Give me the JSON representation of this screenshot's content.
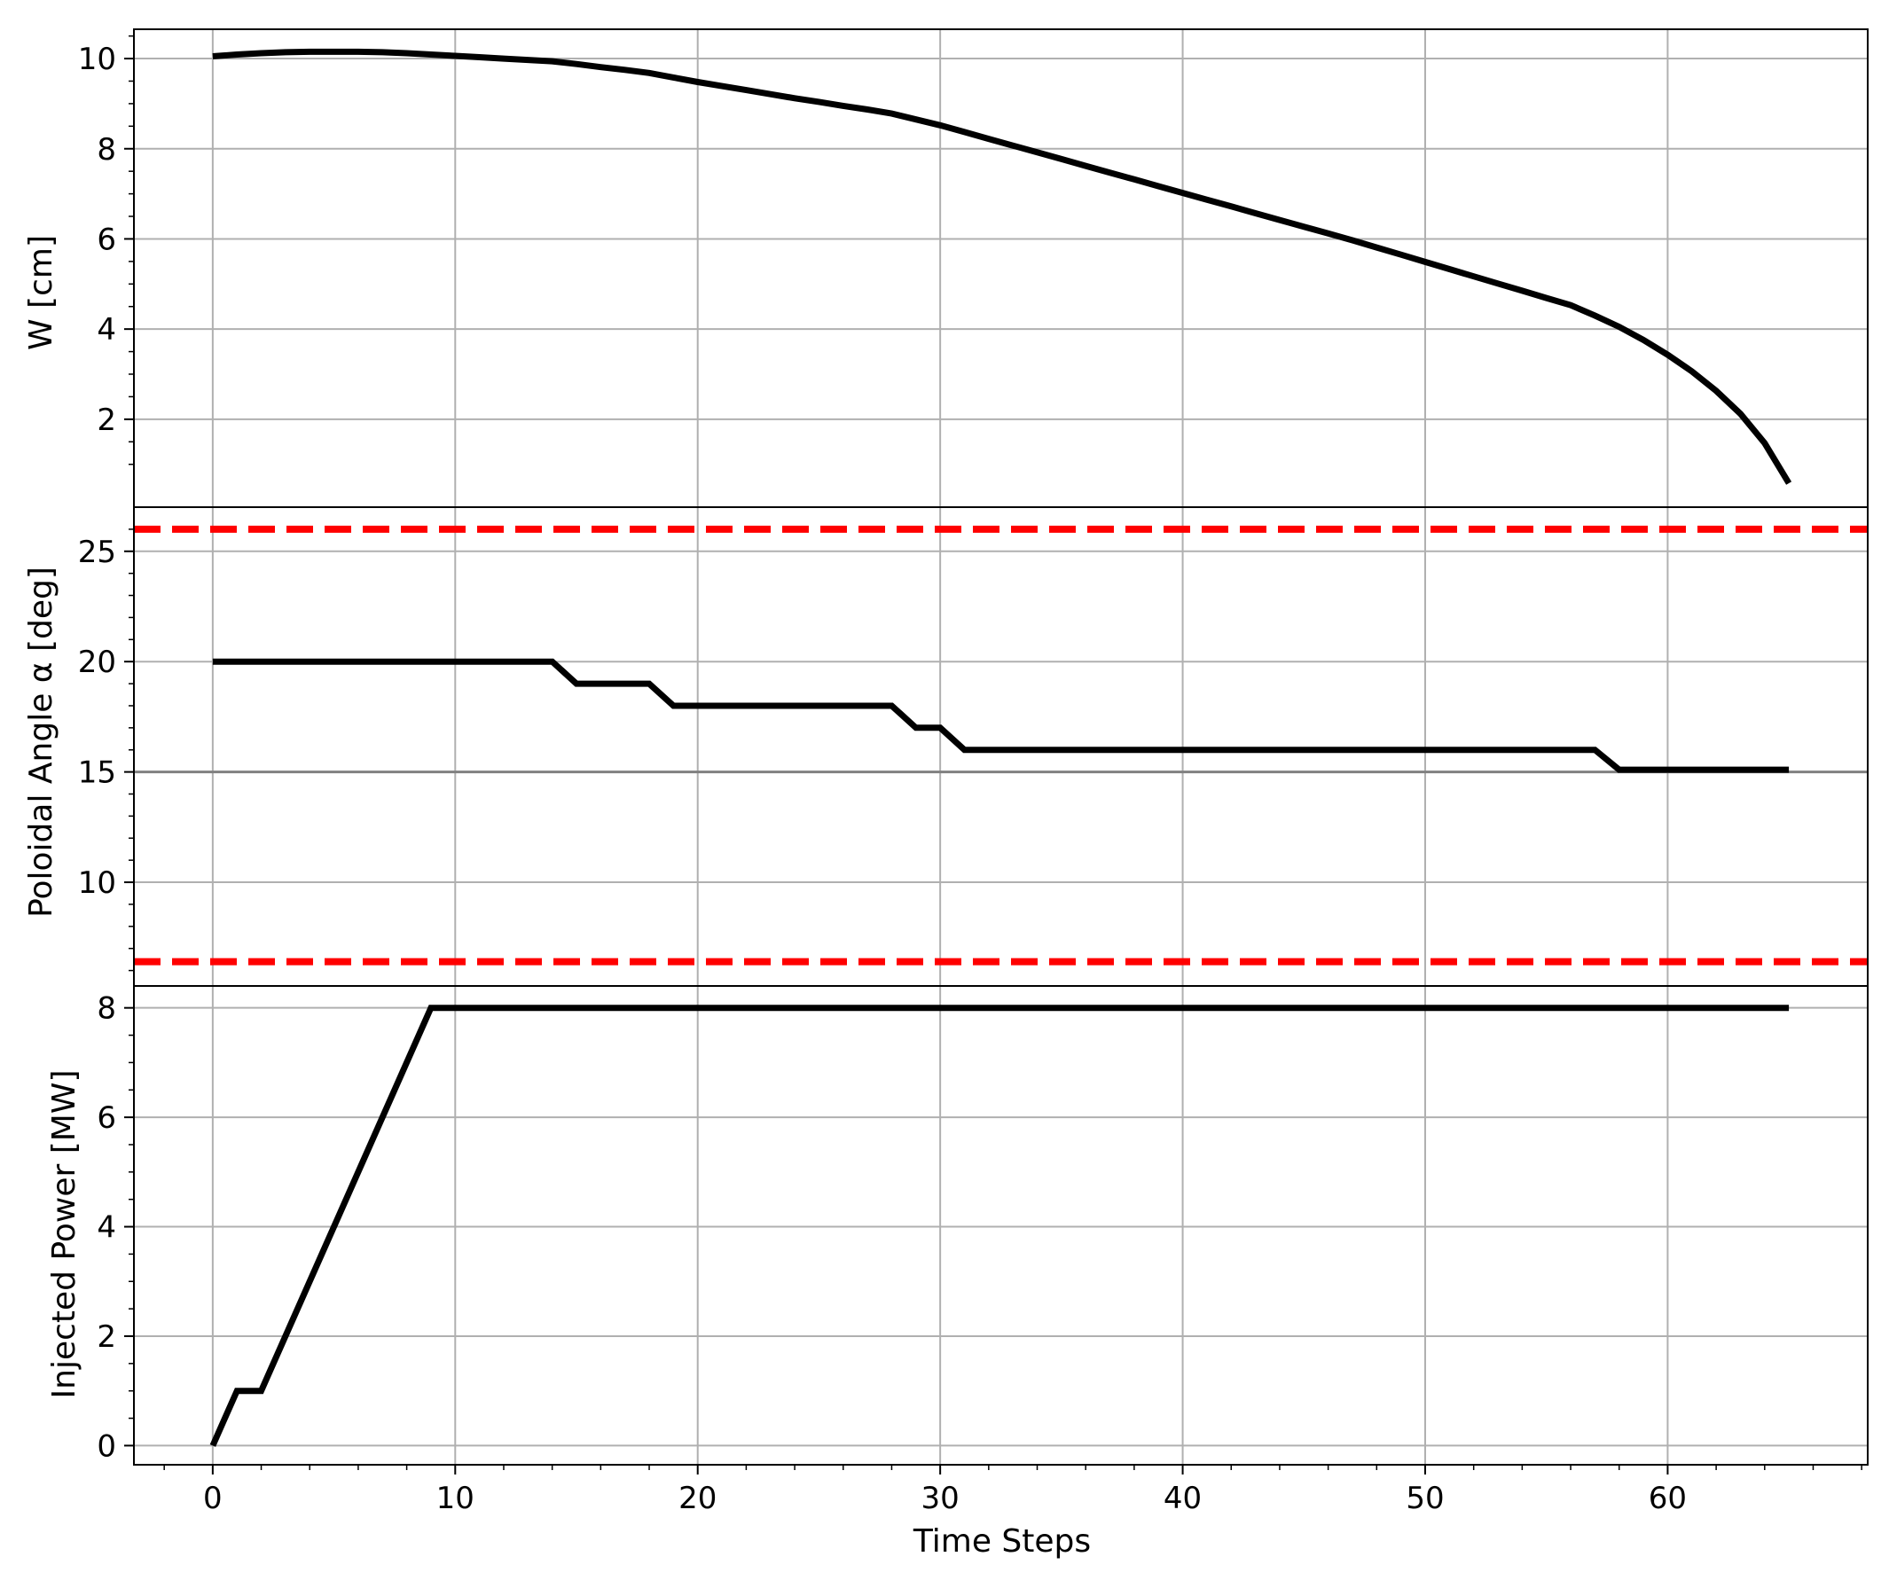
{
  "chart_data": [
    {
      "type": "line",
      "panel": "top",
      "ylabel": "W [cm]",
      "xlabel": "",
      "xlim": [
        -3.25,
        68.25
      ],
      "ylim": [
        0.05,
        10.65
      ],
      "yticks": [
        2,
        4,
        6,
        8,
        10
      ],
      "yminor": [
        1,
        1.5,
        2.5,
        3,
        3.5,
        4.5,
        5,
        5.5,
        6.5,
        7,
        7.5,
        8.5,
        9,
        9.5,
        10.5
      ],
      "grid": true,
      "series": [
        {
          "color": "#000000",
          "x": [
            0,
            1,
            2,
            3,
            4,
            5,
            6,
            7,
            8,
            9,
            10,
            11,
            12,
            13,
            14,
            15,
            16,
            17,
            18,
            19,
            20,
            21,
            22,
            23,
            24,
            25,
            26,
            27,
            28,
            29,
            30,
            31,
            32,
            33,
            34,
            35,
            36,
            37,
            38,
            39,
            40,
            41,
            42,
            43,
            44,
            45,
            46,
            47,
            48,
            49,
            50,
            51,
            52,
            53,
            54,
            55,
            56,
            57,
            58,
            59,
            60,
            61,
            62,
            63,
            64,
            65
          ],
          "y": [
            10.05,
            10.09,
            10.12,
            10.14,
            10.15,
            10.15,
            10.15,
            10.14,
            10.12,
            10.09,
            10.06,
            10.03,
            10.0,
            9.97,
            9.94,
            9.88,
            9.81,
            9.75,
            9.68,
            9.58,
            9.48,
            9.39,
            9.3,
            9.21,
            9.12,
            9.04,
            8.95,
            8.87,
            8.78,
            8.65,
            8.52,
            8.37,
            8.22,
            8.07,
            7.92,
            7.77,
            7.62,
            7.47,
            7.32,
            7.17,
            7.02,
            6.87,
            6.72,
            6.57,
            6.42,
            6.27,
            6.12,
            5.97,
            5.81,
            5.65,
            5.49,
            5.33,
            5.17,
            5.01,
            4.85,
            4.69,
            4.53,
            4.3,
            4.05,
            3.76,
            3.43,
            3.06,
            2.63,
            2.12,
            1.47,
            0.58
          ]
        }
      ]
    },
    {
      "type": "line",
      "panel": "middle",
      "ylabel": "Poloidal Angle α [deg]",
      "xlabel": "",
      "xlim": [
        -3.25,
        68.25
      ],
      "ylim": [
        5.3,
        27.0
      ],
      "yticks": [
        10,
        15,
        20,
        25
      ],
      "yminor": [
        6,
        7,
        8,
        9,
        11,
        12,
        13,
        14,
        16,
        17,
        18,
        19,
        21,
        22,
        23,
        24,
        26
      ],
      "grid": true,
      "hlines": [
        {
          "y": 26.0,
          "color": "#ff0000",
          "style": "dashed"
        },
        {
          "y": 15.0,
          "color": "#808080",
          "style": "solid"
        },
        {
          "y": 6.4,
          "color": "#ff0000",
          "style": "dashed"
        }
      ],
      "series": [
        {
          "color": "#000000",
          "x": [
            0,
            14,
            15,
            18,
            19,
            28,
            29,
            30,
            31,
            57,
            58,
            65
          ],
          "y": [
            20,
            20,
            19,
            19,
            18,
            18,
            17,
            17,
            16,
            16,
            15.1,
            15.1
          ]
        }
      ]
    },
    {
      "type": "line",
      "panel": "bottom",
      "ylabel": "Injected Power [MW]",
      "xlabel": "Time Steps",
      "xlim": [
        -3.25,
        68.25
      ],
      "ylim": [
        -0.35,
        8.4
      ],
      "yticks": [
        0,
        2,
        4,
        6,
        8
      ],
      "yminor": [
        0.5,
        1,
        1.5,
        2.5,
        3,
        3.5,
        4.5,
        5,
        5.5,
        6.5,
        7,
        7.5
      ],
      "xticks": [
        0,
        10,
        20,
        30,
        40,
        50,
        60
      ],
      "xminor": [
        -2,
        2,
        4,
        6,
        8,
        12,
        14,
        16,
        18,
        22,
        24,
        26,
        28,
        32,
        34,
        36,
        38,
        42,
        44,
        46,
        48,
        52,
        54,
        56,
        58,
        62,
        64,
        66,
        68
      ],
      "grid": true,
      "series": [
        {
          "color": "#000000",
          "x": [
            0,
            1,
            2,
            9,
            65
          ],
          "y": [
            0,
            1,
            1,
            8,
            8
          ]
        }
      ]
    }
  ]
}
